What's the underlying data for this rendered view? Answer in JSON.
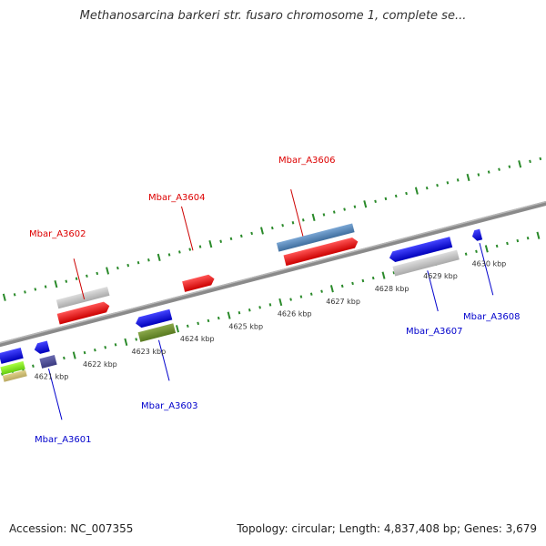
{
  "title": "Methanosarcina barkeri str. fusaro chromosome 1, complete se...",
  "accession": "Accession: NC_007355",
  "summary": "Topology: circular; Length: 4,837,408 bp; Genes: 3,679",
  "colors": {
    "plus_label": "#dd0000",
    "minus_label": "#0000cc",
    "tick": "#2a8a2a",
    "backbone": "#888888"
  },
  "ticks": [
    "4621 kbp",
    "4622 kbp",
    "4623 kbp",
    "4624 kbp",
    "4625 kbp",
    "4626 kbp",
    "4627 kbp",
    "4628 kbp",
    "4629 kbp",
    "4630 kbp"
  ],
  "genes_plus": [
    "Mbar_A3602",
    "Mbar_A3604",
    "Mbar_A3606"
  ],
  "genes_minus": [
    "Mbar_A3601",
    "Mbar_A3603",
    "Mbar_A3607",
    "Mbar_A3608"
  ]
}
